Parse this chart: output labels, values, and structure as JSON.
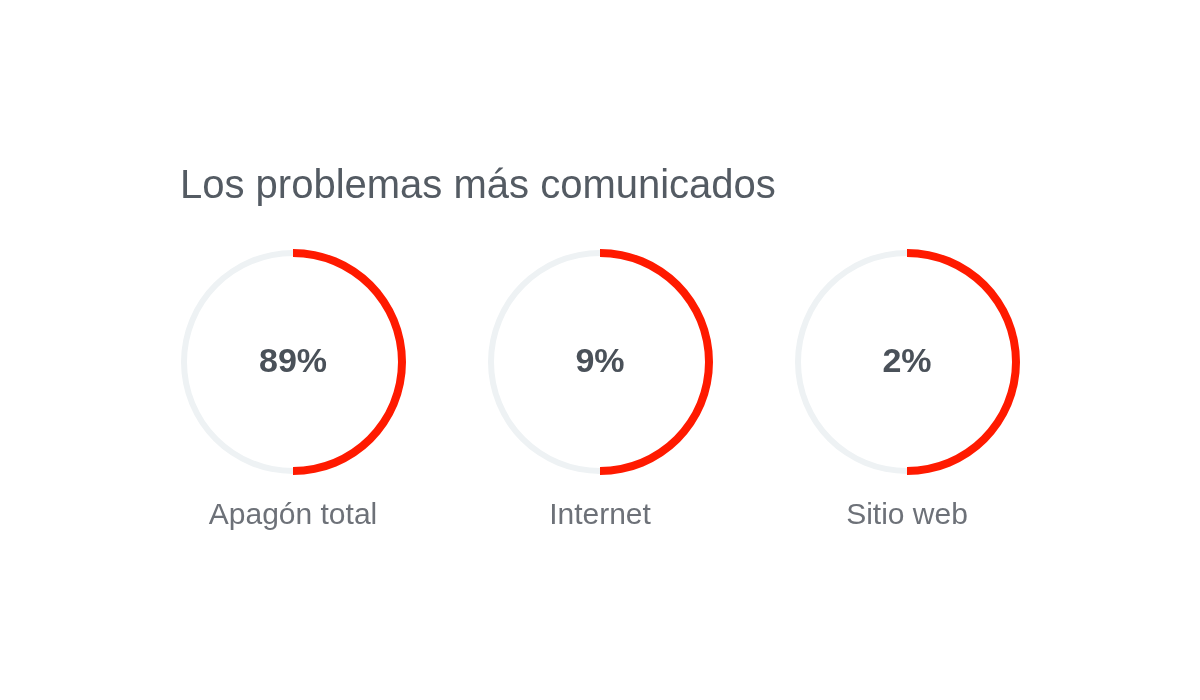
{
  "chart_data": {
    "type": "other",
    "title": "Los problemas más comunicados",
    "categories": [
      "Apagón total",
      "Internet",
      "Sitio web"
    ],
    "values": [
      89,
      9,
      2
    ],
    "value_labels": [
      "89%",
      "9%",
      "2%"
    ]
  }
}
